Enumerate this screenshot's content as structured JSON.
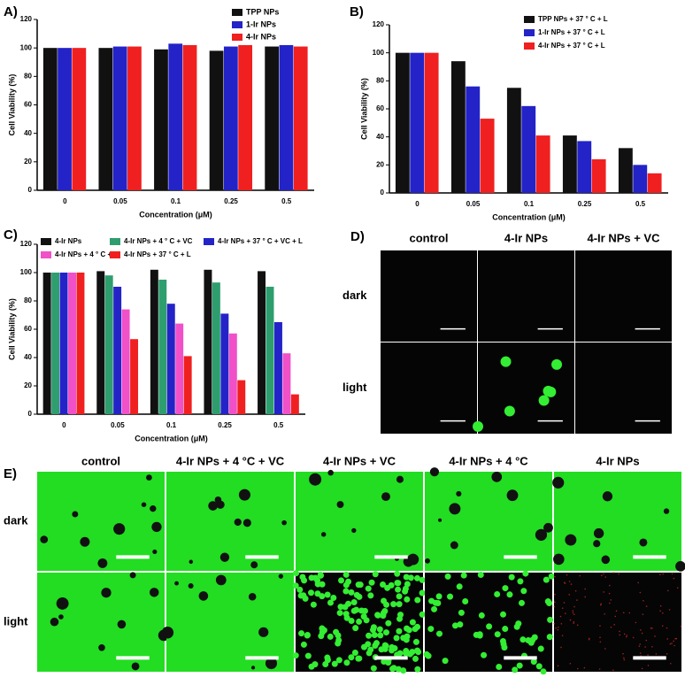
{
  "chart_data": [
    {
      "type": "bar",
      "panel_label": "A)",
      "x_label": "Concentration (μM)",
      "y_label": "Cell Viability (%)",
      "categories": [
        "0",
        "0.05",
        "0.1",
        "0.25",
        "0.5"
      ],
      "ylim": [
        0,
        120
      ],
      "yticks": [
        0,
        20,
        40,
        60,
        80,
        100,
        120
      ],
      "series": [
        {
          "name": "TPP NPs",
          "color": "#111111",
          "values": [
            100,
            100,
            99,
            98,
            101
          ]
        },
        {
          "name": "1-Ir NPs",
          "color": "#2323c8",
          "values": [
            100,
            101,
            103,
            101,
            102
          ]
        },
        {
          "name": "4-Ir NPs",
          "color": "#f02020",
          "values": [
            100,
            101,
            102,
            102,
            101
          ]
        }
      ]
    },
    {
      "type": "bar",
      "panel_label": "B)",
      "x_label": "Concentration (μM)",
      "y_label": "Cell Viability (%)",
      "categories": [
        "0",
        "0.05",
        "0.1",
        "0.25",
        "0.5"
      ],
      "ylim": [
        0,
        120
      ],
      "yticks": [
        0,
        20,
        40,
        60,
        80,
        100,
        120
      ],
      "series": [
        {
          "name": "TPP NPs + 37 ° C + L",
          "color": "#111111",
          "values": [
            100,
            94,
            75,
            41,
            32
          ]
        },
        {
          "name": "1-Ir NPs + 37 ° C + L",
          "color": "#2323c8",
          "values": [
            100,
            76,
            62,
            37,
            20
          ]
        },
        {
          "name": "4-Ir NPs + 37 ° C + L",
          "color": "#f02020",
          "values": [
            100,
            53,
            41,
            24,
            14
          ]
        }
      ]
    },
    {
      "type": "bar",
      "panel_label": "C)",
      "x_label": "Concentration (μM)",
      "y_label": "Cell Viability (%)",
      "categories": [
        "0",
        "0.05",
        "0.1",
        "0.25",
        "0.5"
      ],
      "ylim": [
        0,
        120
      ],
      "yticks": [
        0,
        20,
        40,
        60,
        80,
        100,
        120
      ],
      "series": [
        {
          "name": "4-Ir NPs",
          "color": "#111111",
          "values": [
            100,
            101,
            102,
            102,
            101
          ]
        },
        {
          "name": "4-Ir NPs + 4 ° C + VC",
          "color": "#2e9e6e",
          "values": [
            100,
            98,
            95,
            93,
            90
          ]
        },
        {
          "name": "4-Ir NPs + 37 ° C + VC + L",
          "color": "#2323c8",
          "values": [
            100,
            90,
            78,
            71,
            65
          ]
        },
        {
          "name": "4-Ir NPs + 4 ° C + L",
          "color": "#f050c8",
          "values": [
            100,
            74,
            64,
            57,
            43
          ]
        },
        {
          "name": "4-Ir NPs + 37 ° C + L",
          "color": "#f02020",
          "values": [
            100,
            53,
            41,
            24,
            14
          ]
        }
      ]
    }
  ],
  "panel_d": {
    "label": "D)",
    "columns": [
      "control",
      "4-Ir NPs",
      "4-Ir NPs + VC"
    ],
    "rows": [
      "dark",
      "light"
    ]
  },
  "panel_e": {
    "label": "E)",
    "columns": [
      "control",
      "4-Ir NPs + 4 °C + VC",
      "4-Ir NPs + VC",
      "4-Ir NPs + 4 °C",
      "4-Ir NPs"
    ],
    "rows": [
      "dark",
      "light"
    ]
  }
}
